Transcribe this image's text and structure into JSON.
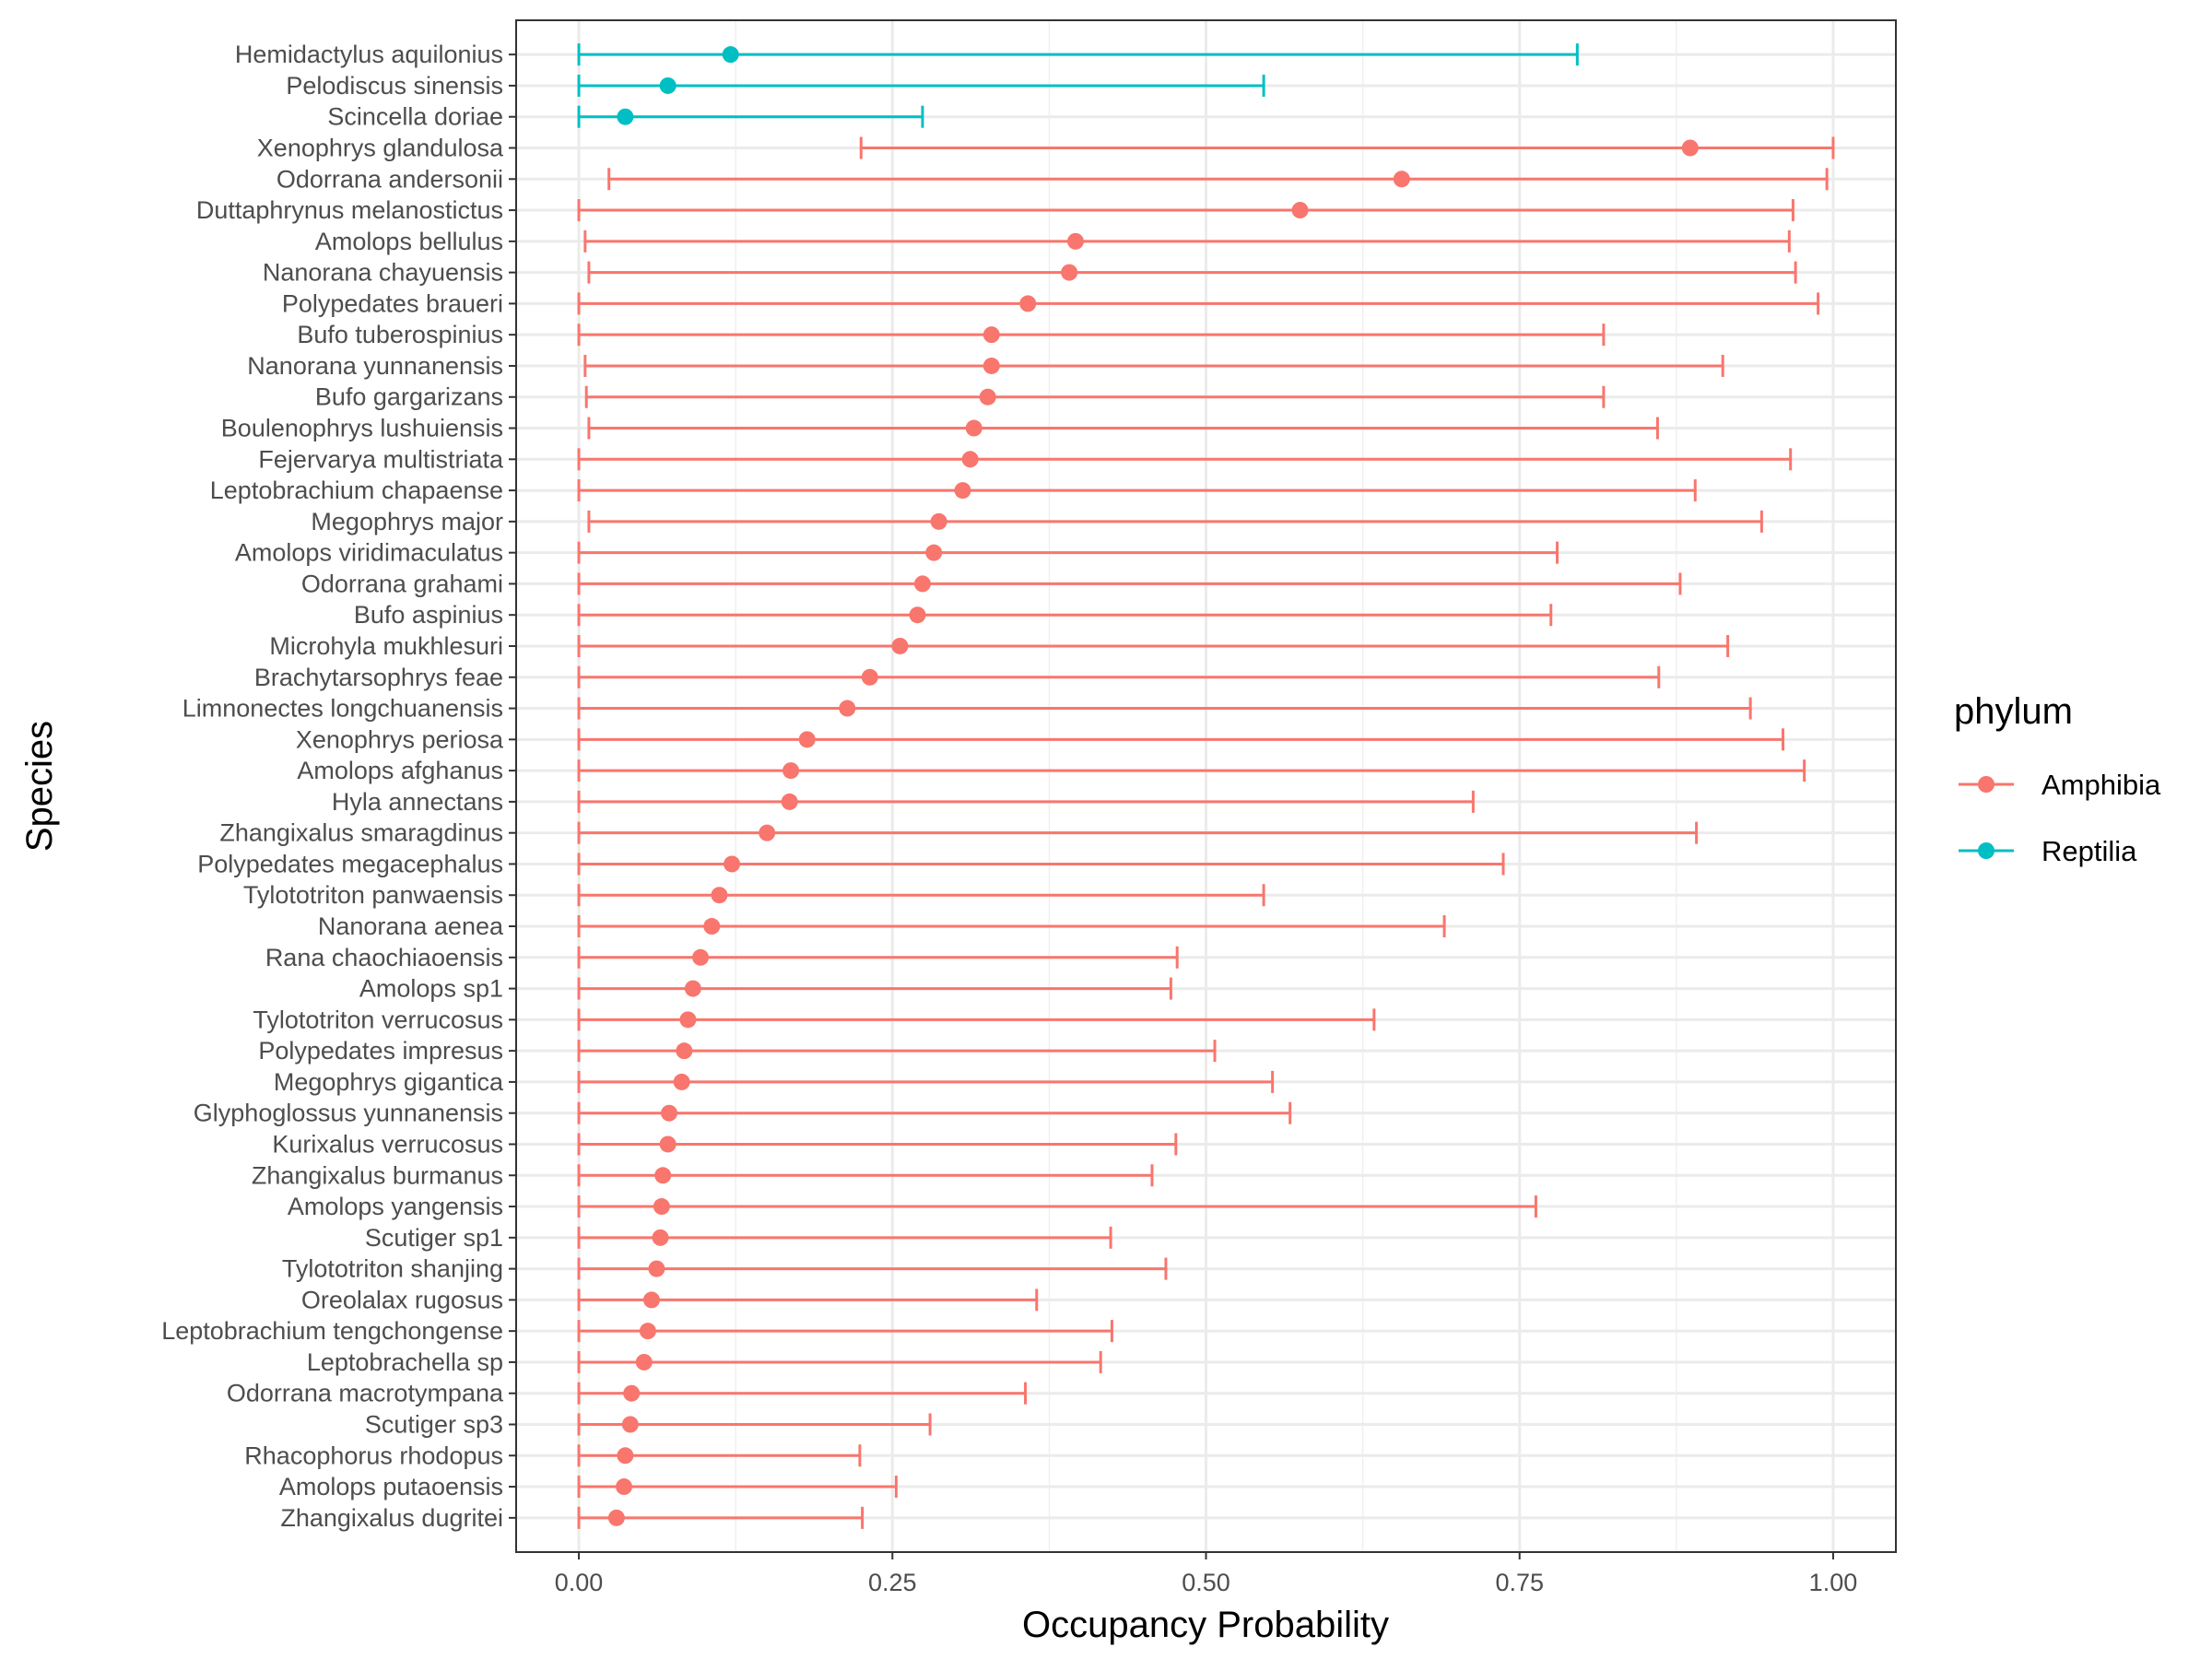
{
  "chart_data": {
    "type": "errorbar-dot",
    "title": "",
    "xlabel": "Occupancy Probability",
    "ylabel": "Species",
    "xlim": [
      -0.05,
      1.05
    ],
    "x_ticks": [
      0.0,
      0.25,
      0.5,
      0.75,
      1.0
    ],
    "x_tick_labels": [
      "0.00",
      "0.25",
      "0.50",
      "0.75",
      "1.00"
    ],
    "grid": true,
    "legend": {
      "title": "phylum",
      "position": "right",
      "entries": [
        {
          "label": "Amphibia",
          "color": "#F8766D"
        },
        {
          "label": "Reptilia",
          "color": "#00BFC4"
        }
      ]
    },
    "colors": {
      "Amphibia": "#F8766D",
      "Reptilia": "#00BFC4"
    },
    "series": [
      {
        "species": "Hemidactylus aquilonius",
        "phylum": "Reptilia",
        "mean": 0.121,
        "lower": 0.0,
        "upper": 0.796
      },
      {
        "species": "Pelodiscus sinensis",
        "phylum": "Reptilia",
        "mean": 0.071,
        "lower": 0.0,
        "upper": 0.546
      },
      {
        "species": "Scincella doriae",
        "phylum": "Reptilia",
        "mean": 0.037,
        "lower": 0.0,
        "upper": 0.274
      },
      {
        "species": "Xenophrys glandulosa",
        "phylum": "Amphibia",
        "mean": 0.886,
        "lower": 0.225,
        "upper": 1.0
      },
      {
        "species": "Odorrana andersonii",
        "phylum": "Amphibia",
        "mean": 0.656,
        "lower": 0.024,
        "upper": 0.995
      },
      {
        "species": "Duttaphrynus melanostictus",
        "phylum": "Amphibia",
        "mean": 0.575,
        "lower": 0.0,
        "upper": 0.968
      },
      {
        "species": "Amolops bellulus",
        "phylum": "Amphibia",
        "mean": 0.396,
        "lower": 0.005,
        "upper": 0.965
      },
      {
        "species": "Nanorana chayuensis",
        "phylum": "Amphibia",
        "mean": 0.391,
        "lower": 0.008,
        "upper": 0.97
      },
      {
        "species": "Polypedates braueri",
        "phylum": "Amphibia",
        "mean": 0.358,
        "lower": 0.0,
        "upper": 0.988
      },
      {
        "species": "Bufo tuberospinius",
        "phylum": "Amphibia",
        "mean": 0.329,
        "lower": 0.0,
        "upper": 0.817
      },
      {
        "species": "Nanorana yunnanensis",
        "phylum": "Amphibia",
        "mean": 0.329,
        "lower": 0.005,
        "upper": 0.912
      },
      {
        "species": "Bufo gargarizans",
        "phylum": "Amphibia",
        "mean": 0.326,
        "lower": 0.006,
        "upper": 0.817
      },
      {
        "species": "Boulenophrys lushuiensis",
        "phylum": "Amphibia",
        "mean": 0.315,
        "lower": 0.008,
        "upper": 0.86
      },
      {
        "species": "Fejervarya multistriata",
        "phylum": "Amphibia",
        "mean": 0.312,
        "lower": 0.0,
        "upper": 0.966
      },
      {
        "species": "Leptobrachium chapaense",
        "phylum": "Amphibia",
        "mean": 0.306,
        "lower": 0.0,
        "upper": 0.89
      },
      {
        "species": "Megophrys major",
        "phylum": "Amphibia",
        "mean": 0.287,
        "lower": 0.008,
        "upper": 0.943
      },
      {
        "species": "Amolops viridimaculatus",
        "phylum": "Amphibia",
        "mean": 0.283,
        "lower": 0.0,
        "upper": 0.78
      },
      {
        "species": "Odorrana grahami",
        "phylum": "Amphibia",
        "mean": 0.274,
        "lower": 0.0,
        "upper": 0.878
      },
      {
        "species": "Bufo aspinius",
        "phylum": "Amphibia",
        "mean": 0.27,
        "lower": 0.0,
        "upper": 0.775
      },
      {
        "species": "Microhyla mukhlesuri",
        "phylum": "Amphibia",
        "mean": 0.256,
        "lower": 0.0,
        "upper": 0.916
      },
      {
        "species": "Brachytarsophrys feae",
        "phylum": "Amphibia",
        "mean": 0.232,
        "lower": 0.0,
        "upper": 0.861
      },
      {
        "species": "Limnonectes longchuanensis",
        "phylum": "Amphibia",
        "mean": 0.214,
        "lower": 0.0,
        "upper": 0.934
      },
      {
        "species": "Xenophrys periosa",
        "phylum": "Amphibia",
        "mean": 0.182,
        "lower": 0.0,
        "upper": 0.96
      },
      {
        "species": "Amolops afghanus",
        "phylum": "Amphibia",
        "mean": 0.169,
        "lower": 0.0,
        "upper": 0.977
      },
      {
        "species": "Hyla annectans",
        "phylum": "Amphibia",
        "mean": 0.168,
        "lower": 0.0,
        "upper": 0.713
      },
      {
        "species": "Zhangixalus smaragdinus",
        "phylum": "Amphibia",
        "mean": 0.15,
        "lower": 0.0,
        "upper": 0.891
      },
      {
        "species": "Polypedates megacephalus",
        "phylum": "Amphibia",
        "mean": 0.122,
        "lower": 0.0,
        "upper": 0.737
      },
      {
        "species": "Tylototriton panwaensis",
        "phylum": "Amphibia",
        "mean": 0.112,
        "lower": 0.0,
        "upper": 0.546
      },
      {
        "species": "Nanorana aenea",
        "phylum": "Amphibia",
        "mean": 0.106,
        "lower": 0.0,
        "upper": 0.69
      },
      {
        "species": "Rana chaochiaoensis",
        "phylum": "Amphibia",
        "mean": 0.097,
        "lower": 0.0,
        "upper": 0.477
      },
      {
        "species": "Amolops sp1",
        "phylum": "Amphibia",
        "mean": 0.091,
        "lower": 0.0,
        "upper": 0.472
      },
      {
        "species": "Tylototriton verrucosus",
        "phylum": "Amphibia",
        "mean": 0.087,
        "lower": 0.0,
        "upper": 0.634
      },
      {
        "species": "Polypedates impresus",
        "phylum": "Amphibia",
        "mean": 0.084,
        "lower": 0.0,
        "upper": 0.507
      },
      {
        "species": "Megophrys gigantica",
        "phylum": "Amphibia",
        "mean": 0.082,
        "lower": 0.0,
        "upper": 0.553
      },
      {
        "species": "Glyphoglossus yunnanensis",
        "phylum": "Amphibia",
        "mean": 0.072,
        "lower": 0.0,
        "upper": 0.567
      },
      {
        "species": "Kurixalus verrucosus",
        "phylum": "Amphibia",
        "mean": 0.071,
        "lower": 0.0,
        "upper": 0.476
      },
      {
        "species": "Zhangixalus burmanus",
        "phylum": "Amphibia",
        "mean": 0.067,
        "lower": 0.0,
        "upper": 0.457
      },
      {
        "species": "Amolops yangensis",
        "phylum": "Amphibia",
        "mean": 0.066,
        "lower": 0.0,
        "upper": 0.763
      },
      {
        "species": "Scutiger sp1",
        "phylum": "Amphibia",
        "mean": 0.065,
        "lower": 0.0,
        "upper": 0.424
      },
      {
        "species": "Tylototriton shanjing",
        "phylum": "Amphibia",
        "mean": 0.062,
        "lower": 0.0,
        "upper": 0.468
      },
      {
        "species": "Oreolalax rugosus",
        "phylum": "Amphibia",
        "mean": 0.058,
        "lower": 0.0,
        "upper": 0.365
      },
      {
        "species": "Leptobrachium tengchongense",
        "phylum": "Amphibia",
        "mean": 0.055,
        "lower": 0.0,
        "upper": 0.425
      },
      {
        "species": "Leptobrachella sp",
        "phylum": "Amphibia",
        "mean": 0.052,
        "lower": 0.0,
        "upper": 0.416
      },
      {
        "species": "Odorrana macrotympana",
        "phylum": "Amphibia",
        "mean": 0.042,
        "lower": 0.0,
        "upper": 0.356
      },
      {
        "species": "Scutiger sp3",
        "phylum": "Amphibia",
        "mean": 0.041,
        "lower": 0.0,
        "upper": 0.28
      },
      {
        "species": "Rhacophorus rhodopus",
        "phylum": "Amphibia",
        "mean": 0.037,
        "lower": 0.0,
        "upper": 0.224
      },
      {
        "species": "Amolops putaoensis",
        "phylum": "Amphibia",
        "mean": 0.036,
        "lower": 0.0,
        "upper": 0.253
      },
      {
        "species": "Zhangixalus dugritei",
        "phylum": "Amphibia",
        "mean": 0.03,
        "lower": 0.0,
        "upper": 0.226
      }
    ]
  }
}
